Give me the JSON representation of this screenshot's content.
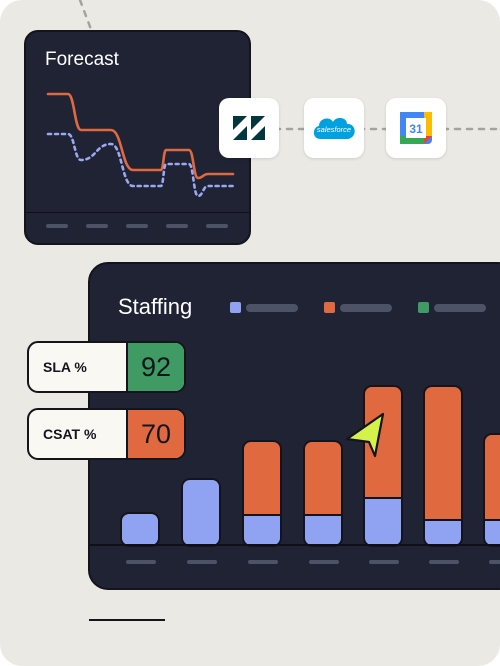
{
  "forecast": {
    "title": "Forecast"
  },
  "staffing": {
    "title": "Staffing"
  },
  "kpis": [
    {
      "label": "SLA %",
      "value": "92",
      "color": "#3f9a64"
    },
    {
      "label": "CSAT %",
      "value": "70",
      "color": "#e0693f"
    }
  ],
  "integrations": [
    {
      "name": "zendesk-logo",
      "color": "#03363d"
    },
    {
      "name": "salesforce-logo",
      "text": "salesforce",
      "color": "#00a1e0"
    },
    {
      "name": "google-calendar-logo",
      "text": "31",
      "color": "#4285f4"
    }
  ],
  "colors": {
    "card": "#1f2333",
    "actual": "#e0693f",
    "forecast": "#9aa8f0",
    "green": "#3f9a64",
    "cursor": "#d4f24a"
  },
  "chart_data": [
    {
      "type": "line",
      "series": [
        {
          "values": [
            4.8,
            4.8,
            3.0,
            3.0,
            1.0,
            1.0,
            2.0,
            2.0,
            0.6,
            0.8,
            0.8
          ]
        },
        {
          "values": [
            2.8,
            2.8,
            1.5,
            2.3,
            0.2,
            0.2,
            1.3,
            1.3,
            -0.3,
            0.2,
            0.2
          ]
        }
      ]
    },
    {
      "type": "bar",
      "stacked": true,
      "series": [
        {
          "values": [
            0,
            0,
            72,
            72,
            110,
            132,
            84
          ]
        },
        {
          "values": [
            33,
            67,
            33,
            33,
            50,
            28,
            28
          ]
        }
      ]
    }
  ]
}
